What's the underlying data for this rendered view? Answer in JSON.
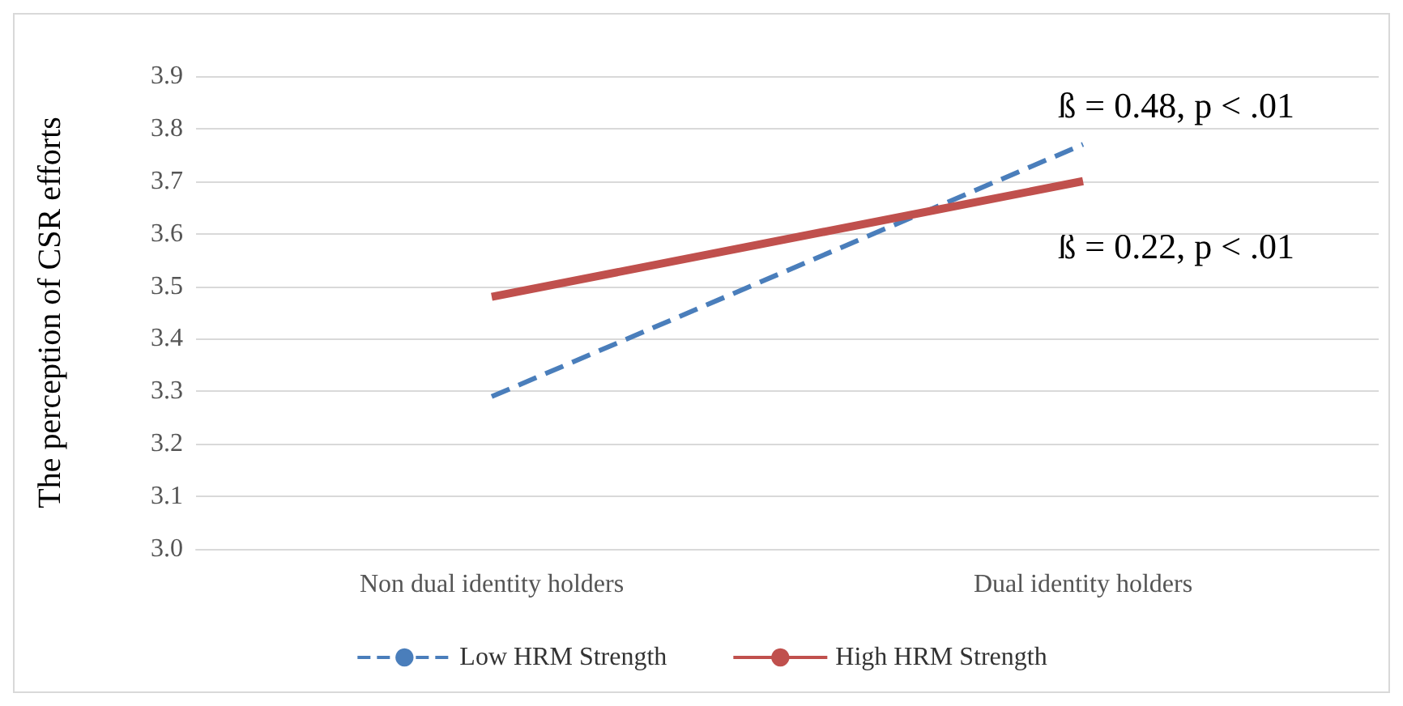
{
  "chart_data": {
    "type": "line",
    "ylabel": "The perception of CSR efforts",
    "categories": [
      "Non dual identity holders",
      "Dual identity holders"
    ],
    "series": [
      {
        "name": "Low HRM Strength",
        "color": "#4a7ebb",
        "values": [
          3.29,
          3.77
        ],
        "line_style": "dashed"
      },
      {
        "name": "High HRM Strength",
        "color": "#c0504d",
        "values": [
          3.48,
          3.7
        ],
        "line_style": "solid"
      }
    ],
    "ylim": [
      3.0,
      3.9
    ],
    "yticks": [
      {
        "value": 3.0,
        "label": "3.0"
      },
      {
        "value": 3.1,
        "label": "3.1"
      },
      {
        "value": 3.2,
        "label": "3.2"
      },
      {
        "value": 3.3,
        "label": "3.3"
      },
      {
        "value": 3.4,
        "label": "3.4"
      },
      {
        "value": 3.5,
        "label": "3.5"
      },
      {
        "value": 3.6,
        "label": "3.6"
      },
      {
        "value": 3.7,
        "label": "3.7"
      },
      {
        "value": 3.8,
        "label": "3.8"
      },
      {
        "value": 3.9,
        "label": "3.9"
      }
    ],
    "annotations": [
      "ß = 0.48, p < .01",
      "ß = 0.22, p < .01"
    ],
    "grid": "y",
    "legend": "bottom",
    "marker": "none"
  }
}
